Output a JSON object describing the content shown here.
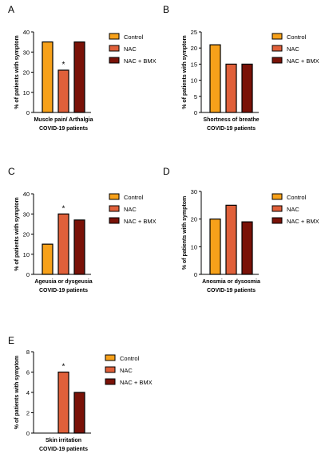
{
  "legend_labels": [
    "Control",
    "NAC",
    "NAC + BMX"
  ],
  "colors": {
    "control": "#F7A11A",
    "nac": "#E0603A",
    "nac_bmx": "#7A1208",
    "stroke": "#000000"
  },
  "chart_data": [
    {
      "panel": "A",
      "type": "bar",
      "categories": [
        "Control",
        "NAC",
        "NAC + BMX"
      ],
      "values": [
        35,
        21,
        35
      ],
      "ylabel": "% of patients with symptom",
      "xlabel_line1": "Muscle pain/ Arthalgia",
      "xlabel_line2": "COVID-19 patients",
      "ylim": [
        0,
        40
      ],
      "yticks": [
        0,
        10,
        20,
        30,
        40
      ],
      "significance": [
        {
          "bar": 1,
          "label": "*"
        }
      ]
    },
    {
      "panel": "B",
      "type": "bar",
      "categories": [
        "Control",
        "NAC",
        "NAC + BMX"
      ],
      "values": [
        21,
        15,
        15
      ],
      "ylabel": "% of patients with symptom",
      "xlabel_line1": "Shortness of breathe",
      "xlabel_line2": "COVID-19 patients",
      "ylim": [
        0,
        25
      ],
      "yticks": [
        0,
        5,
        10,
        15,
        20,
        25
      ],
      "significance": []
    },
    {
      "panel": "C",
      "type": "bar",
      "categories": [
        "Control",
        "NAC",
        "NAC + BMX"
      ],
      "values": [
        15,
        30,
        27
      ],
      "ylabel": "% of patients with symptom",
      "xlabel_line1": "Ageusia or dysgeusia",
      "xlabel_line2": "COVID-19 patients",
      "ylim": [
        0,
        40
      ],
      "yticks": [
        0,
        10,
        20,
        30,
        40
      ],
      "significance": [
        {
          "bar": 1,
          "label": "*"
        }
      ]
    },
    {
      "panel": "D",
      "type": "bar",
      "categories": [
        "Control",
        "NAC",
        "NAC + BMX"
      ],
      "values": [
        20,
        25,
        19
      ],
      "ylabel": "% of patients with symptom",
      "xlabel_line1": "Anosmia or dysosmia",
      "xlabel_line2": "COVID-19 patients",
      "ylim": [
        0,
        30
      ],
      "yticks": [
        0,
        10,
        20,
        30
      ],
      "significance": []
    },
    {
      "panel": "E",
      "type": "bar",
      "categories": [
        "Control",
        "NAC",
        "NAC + BMX"
      ],
      "values": [
        0,
        6,
        4
      ],
      "ylabel": "% of patients with symptom",
      "xlabel_line1": "Skin irritation",
      "xlabel_line2": "COVID-19 patients",
      "ylim": [
        0,
        8
      ],
      "yticks": [
        0,
        2,
        4,
        6,
        8
      ],
      "significance": [
        {
          "bar": 1,
          "label": "*"
        }
      ]
    }
  ]
}
